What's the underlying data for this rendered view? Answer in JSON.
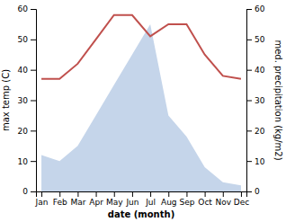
{
  "chart_data": {
    "type": "line",
    "xlabel": "date (month)",
    "ylabel": "max temp (C)",
    "y2label": "med. precipitation (kg/m2)",
    "categories": [
      "Jan",
      "Feb",
      "Mar",
      "Apr",
      "May",
      "Jun",
      "Jul",
      "Aug",
      "Sep",
      "Oct",
      "Nov",
      "Dec"
    ],
    "series": [
      {
        "type": "line",
        "color": "#c0504d",
        "values": [
          37,
          37,
          42,
          50,
          58,
          58,
          51,
          55,
          55,
          45,
          38,
          37
        ]
      },
      {
        "type": "area",
        "color": "#c5d5ea",
        "axis": "y2",
        "values": [
          12,
          10,
          15,
          25,
          35,
          45,
          55,
          25,
          18,
          8,
          3,
          2
        ]
      }
    ],
    "ylim": [
      0,
      60
    ],
    "yticks": [
      0,
      10,
      20,
      30,
      40,
      50,
      60
    ],
    "y2lim": [
      0,
      60
    ],
    "y2ticks": [
      0,
      10,
      20,
      30,
      40,
      50,
      60
    ]
  }
}
